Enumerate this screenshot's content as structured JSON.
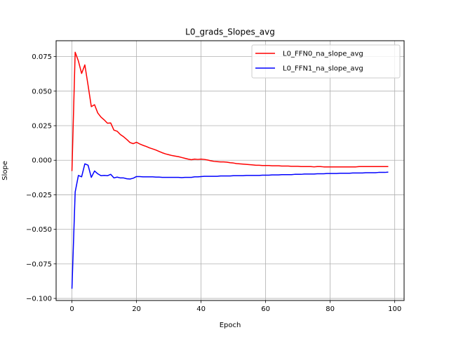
{
  "chart_data": {
    "type": "line",
    "title": "L0_grads_Slopes_avg",
    "xlabel": "Epoch",
    "ylabel": "Slope",
    "xlim": [
      -4.9,
      102.9
    ],
    "ylim": [
      -0.1015,
      0.0865
    ],
    "xticks": [
      0,
      20,
      40,
      60,
      80,
      100
    ],
    "xtick_labels": [
      "0",
      "20",
      "40",
      "60",
      "80",
      "100"
    ],
    "yticks": [
      -0.1,
      -0.075,
      -0.05,
      -0.025,
      0.0,
      0.025,
      0.05,
      0.075
    ],
    "ytick_labels": [
      "−0.100",
      "−0.075",
      "−0.050",
      "−0.025",
      "0.000",
      "0.025",
      "0.050",
      "0.075"
    ],
    "grid": true,
    "legend_position": "upper-right",
    "series": [
      {
        "name": "L0_FFN0_na_slope_avg",
        "color": "#ff0000",
        "x": [
          0,
          1,
          2,
          3,
          4,
          5,
          6,
          7,
          8,
          9,
          10,
          11,
          12,
          13,
          14,
          15,
          16,
          17,
          18,
          19,
          20,
          21,
          22,
          23,
          24,
          25,
          26,
          27,
          28,
          29,
          30,
          31,
          32,
          33,
          34,
          35,
          36,
          37,
          38,
          39,
          40,
          41,
          42,
          43,
          44,
          45,
          46,
          47,
          48,
          49,
          50,
          51,
          52,
          53,
          54,
          55,
          56,
          57,
          58,
          59,
          60,
          61,
          62,
          63,
          64,
          65,
          66,
          67,
          68,
          69,
          70,
          71,
          72,
          73,
          74,
          75,
          76,
          77,
          78,
          79,
          80,
          81,
          82,
          83,
          84,
          85,
          86,
          87,
          88,
          89,
          90,
          91,
          92,
          93,
          94,
          95,
          96,
          97,
          98
        ],
        "y": [
          -0.0078,
          0.0782,
          0.0718,
          0.0628,
          0.069,
          0.0542,
          0.0388,
          0.0402,
          0.0342,
          0.0312,
          0.0292,
          0.0268,
          0.027,
          0.0218,
          0.021,
          0.0186,
          0.017,
          0.015,
          0.0128,
          0.012,
          0.013,
          0.0118,
          0.0108,
          0.01,
          0.009,
          0.0082,
          0.0074,
          0.0064,
          0.0054,
          0.0046,
          0.004,
          0.0034,
          0.003,
          0.0026,
          0.002,
          0.0014,
          0.0008,
          0.0004,
          0.0008,
          0.0006,
          0.0008,
          0.0006,
          0.0002,
          -0.0004,
          -0.0008,
          -0.001,
          -0.0012,
          -0.0012,
          -0.0014,
          -0.0018,
          -0.002,
          -0.0024,
          -0.0026,
          -0.0028,
          -0.003,
          -0.0032,
          -0.0034,
          -0.0036,
          -0.0036,
          -0.0038,
          -0.0038,
          -0.0038,
          -0.004,
          -0.004,
          -0.004,
          -0.0042,
          -0.0042,
          -0.0042,
          -0.0044,
          -0.0044,
          -0.0044,
          -0.0046,
          -0.0046,
          -0.0046,
          -0.0046,
          -0.0048,
          -0.0046,
          -0.0046,
          -0.0048,
          -0.0048,
          -0.0048,
          -0.0048,
          -0.0048,
          -0.0048,
          -0.0048,
          -0.0048,
          -0.0048,
          -0.0048,
          -0.0048,
          -0.0046,
          -0.0046,
          -0.0046,
          -0.0046,
          -0.0046,
          -0.0046,
          -0.0046,
          -0.0046,
          -0.0046,
          -0.0046
        ]
      },
      {
        "name": "L0_FFN1_na_slope_avg",
        "color": "#0000ff",
        "x": [
          0,
          1,
          2,
          3,
          4,
          5,
          6,
          7,
          8,
          9,
          10,
          11,
          12,
          13,
          14,
          15,
          16,
          17,
          18,
          19,
          20,
          21,
          22,
          23,
          24,
          25,
          26,
          27,
          28,
          29,
          30,
          31,
          32,
          33,
          34,
          35,
          36,
          37,
          38,
          39,
          40,
          41,
          42,
          43,
          44,
          45,
          46,
          47,
          48,
          49,
          50,
          51,
          52,
          53,
          54,
          55,
          56,
          57,
          58,
          59,
          60,
          61,
          62,
          63,
          64,
          65,
          66,
          67,
          68,
          69,
          70,
          71,
          72,
          73,
          74,
          75,
          76,
          77,
          78,
          79,
          80,
          81,
          82,
          83,
          84,
          85,
          86,
          87,
          88,
          89,
          90,
          91,
          92,
          93,
          94,
          95,
          96,
          97,
          98
        ],
        "y": [
          -0.093,
          -0.023,
          -0.011,
          -0.012,
          -0.0026,
          -0.0036,
          -0.0124,
          -0.0078,
          -0.0098,
          -0.0112,
          -0.011,
          -0.0112,
          -0.0102,
          -0.0128,
          -0.0122,
          -0.0128,
          -0.0128,
          -0.0134,
          -0.0136,
          -0.013,
          -0.0118,
          -0.0118,
          -0.012,
          -0.012,
          -0.012,
          -0.012,
          -0.0122,
          -0.0122,
          -0.0124,
          -0.0124,
          -0.0124,
          -0.0124,
          -0.0124,
          -0.0124,
          -0.0126,
          -0.0124,
          -0.0124,
          -0.0124,
          -0.012,
          -0.012,
          -0.0118,
          -0.0116,
          -0.0116,
          -0.0116,
          -0.0116,
          -0.0116,
          -0.0114,
          -0.0114,
          -0.0114,
          -0.0114,
          -0.0112,
          -0.0112,
          -0.0112,
          -0.0112,
          -0.011,
          -0.011,
          -0.011,
          -0.011,
          -0.011,
          -0.0108,
          -0.0108,
          -0.0108,
          -0.0106,
          -0.0106,
          -0.0106,
          -0.0104,
          -0.0104,
          -0.0104,
          -0.0104,
          -0.0102,
          -0.0102,
          -0.0102,
          -0.01,
          -0.01,
          -0.01,
          -0.01,
          -0.0098,
          -0.0098,
          -0.0098,
          -0.0096,
          -0.0096,
          -0.0096,
          -0.0096,
          -0.0094,
          -0.0094,
          -0.0094,
          -0.0094,
          -0.0092,
          -0.0092,
          -0.0092,
          -0.0092,
          -0.009,
          -0.009,
          -0.009,
          -0.009,
          -0.0088,
          -0.0088,
          -0.0088,
          -0.0086
        ]
      }
    ]
  }
}
